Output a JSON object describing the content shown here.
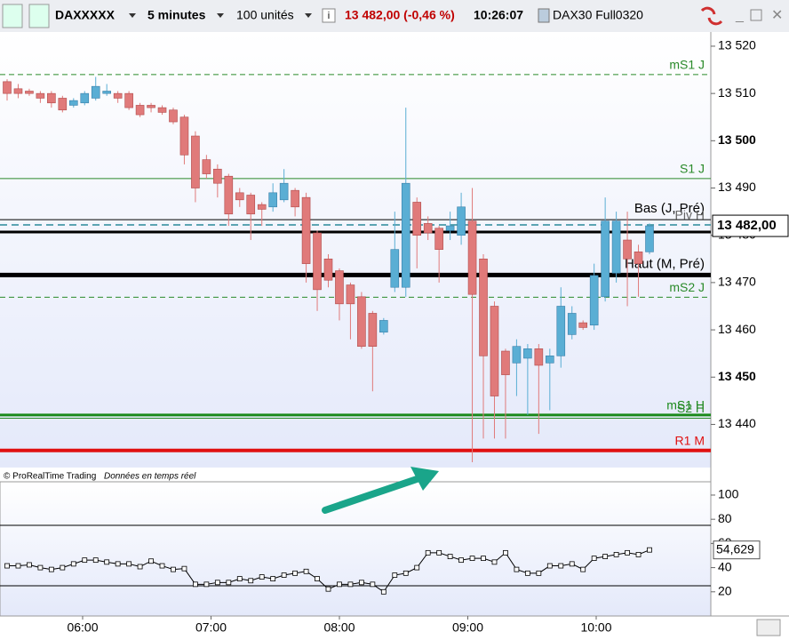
{
  "toolbar": {
    "symbol": "DAXXXXX",
    "interval": "5 minutes",
    "quantity": "100 unités",
    "price_change": "13 482,00 (-0,46 %)",
    "time": "10:26:07",
    "contract": "DAX30 Full0320"
  },
  "price_panel": {
    "ylim": [
      13432,
      13523
    ],
    "yticks": [
      {
        "value": 13520,
        "label": "13 520"
      },
      {
        "value": 13510,
        "label": "13 510"
      },
      {
        "value": 13500,
        "label": "13 500"
      },
      {
        "value": 13490,
        "label": "13 490"
      },
      {
        "value": 13480,
        "label": "13 480"
      },
      {
        "value": 13470,
        "label": "13 470"
      },
      {
        "value": 13460,
        "label": "13 460"
      },
      {
        "value": 13450,
        "label": "13 450"
      },
      {
        "value": 13440,
        "label": "13 440"
      }
    ],
    "last_price": {
      "value": 13482,
      "label": "13 482,00"
    },
    "up_color": "#5aaed4",
    "down_color": "#e07a7a",
    "candles": [
      [
        13512.5,
        13513,
        13508.5,
        13510
      ],
      [
        13511,
        13512,
        13509,
        13510
      ],
      [
        13510.5,
        13511,
        13509.5,
        13510
      ],
      [
        13510,
        13510.5,
        13508,
        13509
      ],
      [
        13510,
        13510.5,
        13507,
        13508
      ],
      [
        13509,
        13509.5,
        13506,
        13506.5
      ],
      [
        13507.5,
        13509,
        13507,
        13508.5
      ],
      [
        13508,
        13510.5,
        13507.5,
        13510
      ],
      [
        13509,
        13513.5,
        13508.5,
        13511.5
      ],
      [
        13510,
        13512,
        13509.5,
        13510.5
      ],
      [
        13510,
        13510.5,
        13508,
        13509
      ],
      [
        13510,
        13510.5,
        13506.5,
        13507
      ],
      [
        13507.5,
        13508,
        13505,
        13505.5
      ],
      [
        13507.5,
        13508,
        13506,
        13507
      ],
      [
        13507,
        13507.5,
        13505.5,
        13506
      ],
      [
        13506.5,
        13507,
        13503.5,
        13504
      ],
      [
        13505,
        13505.5,
        13495,
        13497
      ],
      [
        13501,
        13502,
        13487,
        13490
      ],
      [
        13496,
        13497,
        13492,
        13493
      ],
      [
        13494,
        13495,
        13488,
        13491
      ],
      [
        13492.5,
        13493,
        13482,
        13484.5
      ],
      [
        13489,
        13490,
        13486,
        13487.5
      ],
      [
        13488.5,
        13489,
        13479,
        13484.5
      ],
      [
        13486.5,
        13487,
        13482,
        13485.5
      ],
      [
        13486,
        13491,
        13485,
        13489
      ],
      [
        13487.5,
        13494,
        13487,
        13491
      ],
      [
        13489.5,
        13490,
        13484,
        13486
      ],
      [
        13488,
        13489,
        13470,
        13474
      ],
      [
        13480.5,
        13481,
        13464,
        13468.5
      ],
      [
        13475,
        13476,
        13469,
        13470.5
      ],
      [
        13472.5,
        13473,
        13462,
        13465.5
      ],
      [
        13469.5,
        13470,
        13458,
        13465.5
      ],
      [
        13467,
        13468,
        13456,
        13456.5
      ],
      [
        13463.5,
        13464,
        13447,
        13456.5
      ],
      [
        13459.5,
        13462.5,
        13459,
        13462
      ],
      [
        13469,
        13485,
        13468,
        13477
      ],
      [
        13469,
        13507,
        13467,
        13491
      ],
      [
        13487,
        13488,
        13473,
        13480
      ],
      [
        13482.5,
        13484,
        13479,
        13480.5
      ],
      [
        13481.5,
        13482,
        13470,
        13477
      ],
      [
        13481,
        13485,
        13479,
        13482
      ],
      [
        13480,
        13489,
        13478,
        13486
      ],
      [
        13483,
        13490,
        13432,
        13467.5
      ],
      [
        13475,
        13476,
        13437,
        13454.5
      ],
      [
        13465,
        13466,
        13437,
        13446
      ],
      [
        13455.5,
        13456,
        13437,
        13450.5
      ],
      [
        13453,
        13458,
        13446,
        13456.5
      ],
      [
        13454,
        13457,
        13442,
        13456
      ],
      [
        13456,
        13457,
        13438,
        13452.5
      ],
      [
        13453,
        13456,
        13443,
        13454.5
      ],
      [
        13454.5,
        13469,
        13452,
        13465
      ],
      [
        13459,
        13465,
        13458,
        13463.5
      ],
      [
        13461.5,
        13462,
        13460,
        13460.5
      ],
      [
        13461,
        13474,
        13460,
        13471.5
      ],
      [
        13467,
        13488,
        13466,
        13483
      ],
      [
        13472,
        13485,
        13470,
        13483
      ],
      [
        13479,
        13485,
        13465,
        13475
      ],
      [
        13476.5,
        13478,
        13467,
        13474
      ],
      [
        13476.5,
        13482.5,
        13476,
        13482
      ]
    ],
    "levels": [
      {
        "label": "mS1 J",
        "value": 13514,
        "color": "#2a8a2a",
        "width": 1,
        "dash": "6,4"
      },
      {
        "label": "S1 J",
        "value": 13492,
        "color": "#2a8a2a",
        "width": 1,
        "dash": ""
      },
      {
        "label": "Bas (J, Pré)",
        "value": 13483.3,
        "color": "#000000",
        "width": 1,
        "dash": ""
      },
      {
        "label": "Piv H",
        "value": 13482.2,
        "color": "#2a8a9a",
        "width": 1.5,
        "dash": "8,5"
      },
      {
        "label": "Haut (M, Pré)",
        "value": 13471.6,
        "color": "#000000",
        "width": 5,
        "dash": ""
      },
      {
        "value": 13480.7,
        "color": "#000000",
        "width": 3,
        "dash": ""
      },
      {
        "label": "mS2 J",
        "value": 13466.9,
        "color": "#2a8a2a",
        "width": 1,
        "dash": "6,4"
      },
      {
        "label": "mS1 H",
        "value": 13442,
        "color": "#1a8a1a",
        "width": 3,
        "dash": ""
      },
      {
        "label": "S2 H",
        "value": 13441.3,
        "color": "#2a8a2a",
        "width": 1,
        "dash": ""
      },
      {
        "label": "R1 M",
        "value": 13434.5,
        "color": "#e01010",
        "width": 4,
        "dash": ""
      }
    ]
  },
  "footer": {
    "copyright": "© ProRealTime Trading",
    "feed": "Données en temps réel"
  },
  "indicator": {
    "ylim": [
      0,
      111
    ],
    "yticks": [
      100,
      80,
      60,
      40,
      20
    ],
    "bands": [
      75,
      25
    ],
    "values": [
      41.5,
      41.5,
      42.3,
      40,
      38.5,
      40,
      43.1,
      46.2,
      46.2,
      44.6,
      43.1,
      43.1,
      40.8,
      45.4,
      41.5,
      38.5,
      39.2,
      26.2,
      26.2,
      27.7,
      27.7,
      30.8,
      29.2,
      32.3,
      30.8,
      33.8,
      35.4,
      36.9,
      30.8,
      22.3,
      26.2,
      26.2,
      27.7,
      26.2,
      20,
      33.8,
      35.4,
      40,
      52.3,
      52.3,
      49.2,
      46.2,
      47.7,
      47.7,
      44.6,
      52.3,
      38.5,
      35.4,
      35.4,
      41.5,
      41.5,
      43.1,
      38.5,
      47.7,
      49.2,
      50.8,
      52.3,
      50.8,
      54.629
    ],
    "last": {
      "value": 54.629,
      "label": "54,629"
    }
  },
  "time_axis": [
    "06:00",
    "07:00",
    "08:00",
    "09:00",
    "10:00"
  ]
}
